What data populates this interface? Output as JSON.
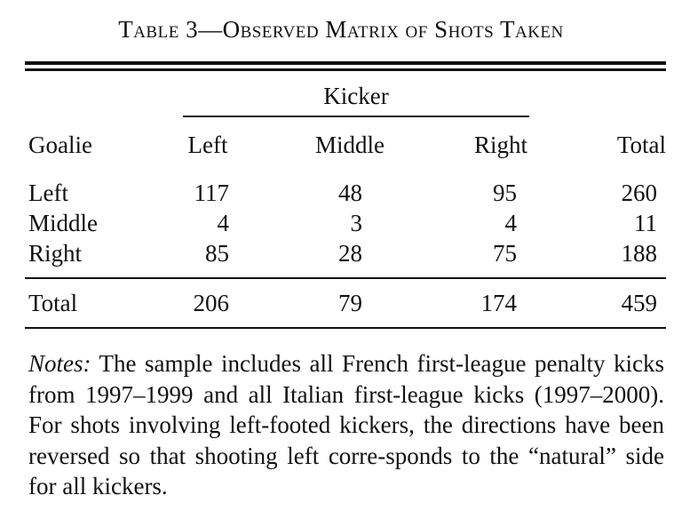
{
  "caption": "Table 3—Observed Matrix of Shots Taken",
  "table": {
    "group_header": "Kicker",
    "row_header_label": "Goalie",
    "columns": [
      "Left",
      "Middle",
      "Right",
      "Total"
    ],
    "rows": [
      {
        "label": "Left",
        "values": [
          "117",
          "48",
          "95",
          "260"
        ]
      },
      {
        "label": "Middle",
        "values": [
          "4",
          "3",
          "4",
          "11"
        ]
      },
      {
        "label": "Right",
        "values": [
          "85",
          "28",
          "75",
          "188"
        ]
      }
    ],
    "total_row": {
      "label": "Total",
      "values": [
        "206",
        "79",
        "174",
        "459"
      ]
    }
  },
  "notes": {
    "label": "Notes:",
    "text": "The sample includes all French first-league penalty kicks from 1997–1999 and all Italian first-league kicks (1997–2000). For shots involving left-footed kickers, the directions have been reversed so that shooting left corre-sponds to the “natural” side for all kickers."
  }
}
